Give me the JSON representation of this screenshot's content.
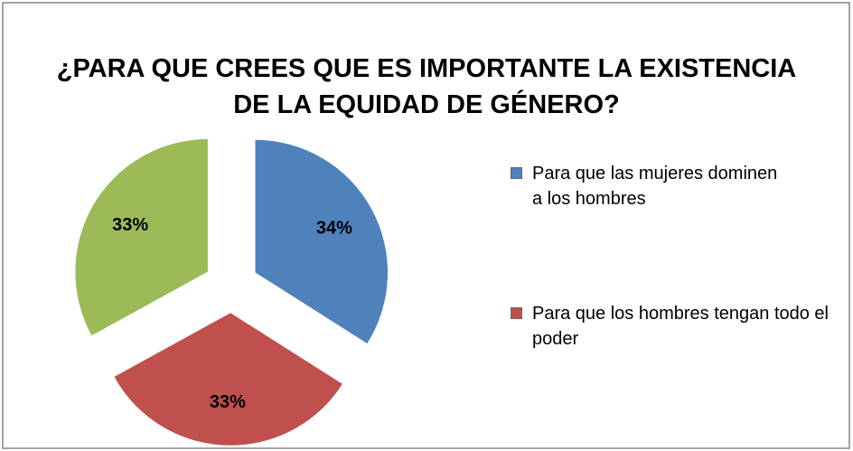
{
  "chart_data": {
    "type": "pie",
    "title": "¿PARA QUE CREES QUE ES IMPORTANTE LA EXISTENCIA DE LA EQUIDAD DE GÉNERO?",
    "categories": [
      "Para que las mujeres dominen a los hombres",
      "Para que los hombres tengan todo el poder",
      null
    ],
    "values": [
      34,
      33,
      33
    ],
    "value_labels": [
      "34%",
      "33%",
      "33%"
    ],
    "colors": [
      "#4f81bd",
      "#c0504d",
      "#9bbb59"
    ],
    "legend": "right"
  }
}
